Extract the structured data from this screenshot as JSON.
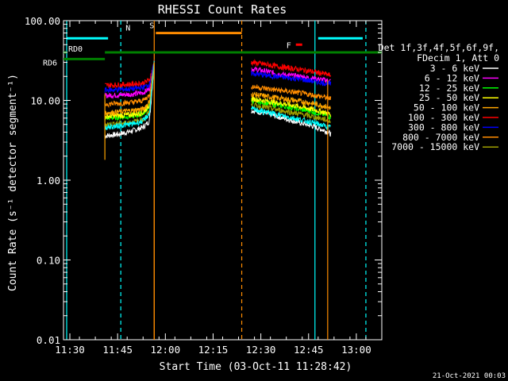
{
  "chart_data": {
    "type": "line",
    "title": "RHESSI Count Rates",
    "xlabel": "Start Time (03-Oct-11 11:28:42)",
    "ylabel": "Count Rate (s⁻¹ detector segment⁻¹)",
    "y_scale": "log",
    "ylim": [
      0.01,
      100
    ],
    "xlim": [
      "11:28",
      "13:08"
    ],
    "x_ticks": [
      "11:30",
      "11:45",
      "12:00",
      "12:15",
      "12:30",
      "12:45",
      "13:00"
    ],
    "y_ticks": [
      "0.01",
      "0.10",
      "1.00",
      "10.00",
      "100.00"
    ],
    "legend_header": [
      "Det 1f,3f,4f,5f,6f,9f,",
      "FDecim 1, Att 0"
    ],
    "legend_position": "right",
    "series": [
      {
        "name": "3 - 6 keV",
        "color": "#ffffff",
        "segments": [
          {
            "x": [
              "11:41",
              "11:44",
              "11:47",
              "11:50",
              "11:53",
              "11:55",
              "11:56.5"
            ],
            "y": [
              3.6,
              3.7,
              3.9,
              4.2,
              4.6,
              5.5,
              30
            ]
          },
          {
            "x": [
              "12:27",
              "12:32",
              "12:37",
              "12:42",
              "12:46",
              "12:50",
              "12:52"
            ],
            "y": [
              7.5,
              6.8,
              6.0,
              5.3,
              4.8,
              4.2,
              3.8
            ]
          }
        ]
      },
      {
        "name": "6 - 12 keV",
        "color": "#ff00ff",
        "segments": [
          {
            "x": [
              "11:41",
              "11:44",
              "11:47",
              "11:50",
              "11:53",
              "11:55",
              "11:56.5"
            ],
            "y": [
              11.5,
              11.6,
              11.8,
              12,
              12.5,
              14,
              30
            ]
          },
          {
            "x": [
              "12:27",
              "12:32",
              "12:37",
              "12:42",
              "12:46",
              "12:50",
              "12:52"
            ],
            "y": [
              25,
              23,
              21,
              20,
              19,
              18,
              17.5
            ]
          }
        ]
      },
      {
        "name": "12 - 25 keV",
        "color": "#00ff00",
        "segments": [
          {
            "x": [
              "11:41",
              "11:44",
              "11:47",
              "11:50",
              "11:53",
              "11:55",
              "11:56.5"
            ],
            "y": [
              6.0,
              6.1,
              6.2,
              6.4,
              6.8,
              8.5,
              30
            ]
          },
          {
            "x": [
              "12:27",
              "12:32",
              "12:37",
              "12:42",
              "12:46",
              "12:50",
              "12:52"
            ],
            "y": [
              10,
              9.2,
              8.5,
              7.8,
              7.3,
              6.6,
              6.2
            ]
          }
        ]
      },
      {
        "name": "25 - 50 keV",
        "color": "#ffff00",
        "segments": [
          {
            "x": [
              "11:41",
              "11:44",
              "11:47",
              "11:50",
              "11:53",
              "11:55",
              "11:56.5"
            ],
            "y": [
              6.3,
              6.4,
              6.5,
              6.7,
              7.0,
              8.8,
              30
            ]
          },
          {
            "x": [
              "12:27",
              "12:32",
              "12:37",
              "12:42",
              "12:46",
              "12:50",
              "12:52"
            ],
            "y": [
              10.5,
              9.8,
              9.1,
              8.4,
              7.8,
              7.1,
              6.7
            ]
          }
        ]
      },
      {
        "name": "50 - 100 keV",
        "color": "#ffa500",
        "segments": [
          {
            "x": [
              "11:41",
              "11:44",
              "11:47",
              "11:50",
              "11:53",
              "11:55",
              "11:56.5"
            ],
            "y": [
              7.0,
              7.1,
              7.3,
              7.5,
              7.8,
              9.5,
              30
            ]
          },
          {
            "x": [
              "12:27",
              "12:32",
              "12:37",
              "12:42",
              "12:46",
              "12:50",
              "12:52"
            ],
            "y": [
              12,
              11.2,
              10.5,
              9.8,
              9.2,
              8.5,
              8.0
            ]
          }
        ]
      },
      {
        "name": "100 - 300 keV",
        "color": "#ff0000",
        "segments": [
          {
            "x": [
              "11:41",
              "11:44",
              "11:47",
              "11:50",
              "11:53",
              "11:55",
              "11:56.5"
            ],
            "y": [
              15.5,
              15.6,
              15.8,
              16,
              16.5,
              18,
              30
            ]
          },
          {
            "x": [
              "12:27",
              "12:32",
              "12:37",
              "12:42",
              "12:46",
              "12:50",
              "12:52"
            ],
            "y": [
              30,
              28,
              26,
              24.5,
              23,
              21.5,
              20.5
            ]
          }
        ]
      },
      {
        "name": "300 - 800 keV",
        "color": "#0000ff",
        "segments": [
          {
            "x": [
              "11:41",
              "11:44",
              "11:47",
              "11:50",
              "11:53",
              "11:55",
              "11:56.5"
            ],
            "y": [
              13.5,
              13.6,
              13.8,
              14,
              14.5,
              16,
              30
            ]
          },
          {
            "x": [
              "12:27",
              "12:32",
              "12:37",
              "12:42",
              "12:46",
              "12:50",
              "12:52"
            ],
            "y": [
              22,
              20.5,
              19.5,
              18.5,
              17.5,
              16.5,
              16
            ]
          }
        ]
      },
      {
        "name": "800 - 7000 keV",
        "color": "#ff8c00",
        "segments": [
          {
            "x": [
              "11:41",
              "11:44",
              "11:47",
              "11:50",
              "11:53",
              "11:55",
              "11:56.5"
            ],
            "y": [
              9.0,
              9.1,
              9.3,
              9.5,
              10,
              11.5,
              30
            ]
          },
          {
            "x": [
              "12:27",
              "12:32",
              "12:37",
              "12:42",
              "12:46",
              "12:50",
              "12:52"
            ],
            "y": [
              15,
              14,
              13.2,
              12.4,
              11.7,
              11,
              10.5
            ]
          }
        ]
      },
      {
        "name": "7000 - 15000 keV",
        "color": "#a0a000",
        "segments": [
          {
            "x": [
              "11:41",
              "11:44",
              "11:47",
              "11:50",
              "11:53",
              "11:55",
              "11:56.5"
            ],
            "y": [
              5.0,
              5.1,
              5.2,
              5.4,
              5.7,
              7.2,
              30
            ]
          },
          {
            "x": [
              "12:27",
              "12:32",
              "12:37",
              "12:42",
              "12:46",
              "12:50",
              "12:52"
            ],
            "y": [
              8.8,
              8.1,
              7.4,
              6.8,
              6.3,
              5.8,
              5.4
            ]
          }
        ]
      },
      {
        "name": "",
        "color": "#00ffff",
        "segments": [
          {
            "x": [
              "11:41",
              "11:44",
              "11:47",
              "11:50",
              "11:53",
              "11:55",
              "11:56.5"
            ],
            "y": [
              4.6,
              4.7,
              4.9,
              5.1,
              5.5,
              6.8,
              30
            ]
          },
          {
            "x": [
              "12:27",
              "12:32",
              "12:37",
              "12:42",
              "12:46",
              "12:50",
              "12:52"
            ],
            "y": [
              7.8,
              7.1,
              6.4,
              5.8,
              5.3,
              4.8,
              4.5
            ]
          }
        ]
      }
    ],
    "flag_bars": [
      {
        "label": "N",
        "color": "#00ffff",
        "y": 60,
        "ranges": [
          [
            "11:29",
            "11:42"
          ],
          [
            "12:48",
            "13:02"
          ]
        ]
      },
      {
        "label": "S",
        "color": "#ff8c00",
        "y": 70,
        "ranges": [
          [
            "11:57",
            "12:24"
          ]
        ]
      },
      {
        "label": "F",
        "color": "#ff0000",
        "y": 50,
        "ranges": [
          [
            "12:41",
            "12:43"
          ]
        ]
      },
      {
        "label": "RD0",
        "color": "#008000",
        "y": 40,
        "ranges": [
          [
            "11:28",
            "11:29"
          ],
          [
            "11:41",
            "13:08"
          ]
        ]
      },
      {
        "label": "RD6",
        "color": "#008000",
        "y": 33,
        "ranges": [
          [
            "11:28",
            "11:41"
          ]
        ]
      }
    ],
    "vlines": [
      {
        "x": "11:29",
        "color": "#00ffff",
        "style": "solid"
      },
      {
        "x": "11:46",
        "color": "#00ffff",
        "style": "dashed"
      },
      {
        "x": "12:47",
        "color": "#00ffff",
        "style": "solid"
      },
      {
        "x": "13:03",
        "color": "#00ffff",
        "style": "dashed"
      },
      {
        "x": "11:56.5",
        "color": "#ff8c00",
        "style": "solid"
      },
      {
        "x": "12:24",
        "color": "#ff8c00",
        "style": "dashed"
      }
    ],
    "drop_lines": [
      {
        "x": "11:41",
        "color": "#ffa500",
        "y_from": 12,
        "y_to": 1.8
      },
      {
        "x": "11:56.5",
        "color": "#ff8c00",
        "y_from": 30,
        "y_to": 0.01
      },
      {
        "x": "12:51",
        "color": "#ff8c00",
        "y_from": 18,
        "y_to": 0.01
      }
    ],
    "timestamp": "21-Oct-2021 00:03"
  }
}
